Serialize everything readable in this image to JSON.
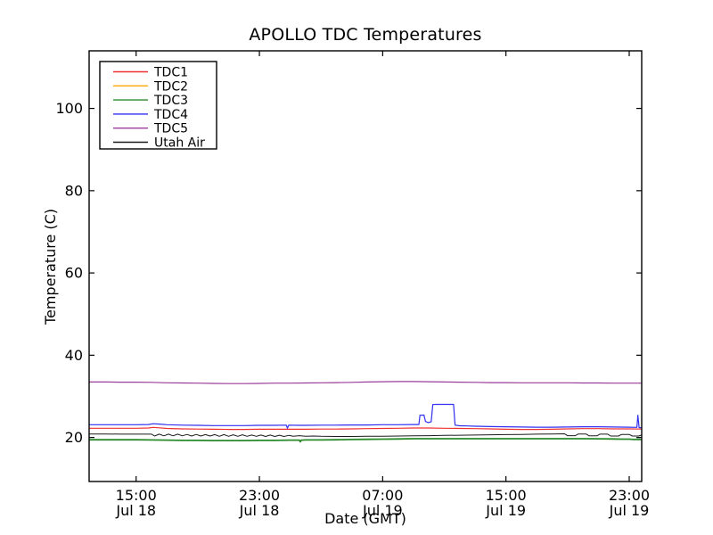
{
  "figure": {
    "background": "#ffffff",
    "axis_color": "#000000",
    "text_color": "#000000"
  },
  "chart_data": {
    "type": "line",
    "title": "APOLLO TDC Temperatures",
    "xlabel": "Date (GMT)",
    "ylabel": "Temperature (C)",
    "grid": false,
    "legend_position": "upper left",
    "x_unit_note": "hours since Jul 18 12:00 GMT",
    "xlim": [
      -0.05,
      35.81
    ],
    "ylim": [
      9.3,
      114
    ],
    "y_ticks": [
      {
        "value": 20,
        "label": "20"
      },
      {
        "value": 40,
        "label": "40"
      },
      {
        "value": 60,
        "label": "60"
      },
      {
        "value": 80,
        "label": "80"
      },
      {
        "value": 100,
        "label": "100"
      }
    ],
    "x_ticks": [
      {
        "t": 3,
        "time": "15:00",
        "date": "Jul 18"
      },
      {
        "t": 11,
        "time": "23:00",
        "date": "Jul 18"
      },
      {
        "t": 19,
        "time": "07:00",
        "date": "Jul 19"
      },
      {
        "t": 27,
        "time": "15:00",
        "date": "Jul 19"
      },
      {
        "t": 35,
        "time": "23:00",
        "date": "Jul 19"
      }
    ],
    "series": [
      {
        "name": "TDC1",
        "color": "#f03030",
        "width": 1.2,
        "points": [
          [
            -0.05,
            22.25
          ],
          [
            1,
            22.25
          ],
          [
            2,
            22.25
          ],
          [
            3,
            22.25
          ],
          [
            3.8,
            22.3
          ],
          [
            4.1,
            22.45
          ],
          [
            4.5,
            22.35
          ],
          [
            5,
            22.2
          ],
          [
            6,
            22.1
          ],
          [
            7,
            22.05
          ],
          [
            8,
            22.0
          ],
          [
            9,
            21.95
          ],
          [
            10,
            21.95
          ],
          [
            11,
            22.0
          ],
          [
            12,
            22.0
          ],
          [
            13,
            22.0
          ],
          [
            14,
            22.0
          ],
          [
            15,
            22.05
          ],
          [
            16,
            22.05
          ],
          [
            17,
            22.1
          ],
          [
            18,
            22.15
          ],
          [
            19,
            22.2
          ],
          [
            20,
            22.25
          ],
          [
            21,
            22.3
          ],
          [
            22,
            22.3
          ],
          [
            23,
            22.25
          ],
          [
            24,
            22.2
          ],
          [
            25,
            22.15
          ],
          [
            26,
            22.1
          ],
          [
            27,
            22.0
          ],
          [
            28,
            21.95
          ],
          [
            29,
            21.95
          ],
          [
            30,
            22.0
          ],
          [
            31,
            22.1
          ],
          [
            32,
            22.15
          ],
          [
            33,
            22.15
          ],
          [
            34,
            22.1
          ],
          [
            35,
            22.1
          ],
          [
            35.81,
            22.05
          ]
        ]
      },
      {
        "name": "TDC2",
        "color": "#ffa500",
        "width": 1.0,
        "points": [
          [
            -0.05,
            19.45
          ],
          [
            1,
            19.45
          ],
          [
            2,
            19.45
          ],
          [
            3,
            19.45
          ],
          [
            4,
            19.4
          ],
          [
            5,
            19.35
          ],
          [
            6,
            19.3
          ],
          [
            7,
            19.3
          ],
          [
            8,
            19.25
          ],
          [
            9,
            19.25
          ],
          [
            10,
            19.25
          ],
          [
            11,
            19.3
          ],
          [
            12,
            19.3
          ],
          [
            13,
            19.35
          ],
          [
            13.6,
            19.35
          ],
          [
            13.65,
            18.95
          ],
          [
            13.72,
            19.35
          ],
          [
            14,
            19.4
          ],
          [
            15,
            19.4
          ],
          [
            16,
            19.45
          ],
          [
            17,
            19.5
          ],
          [
            18,
            19.55
          ],
          [
            19,
            19.6
          ],
          [
            20,
            19.65
          ],
          [
            21,
            19.7
          ],
          [
            22,
            19.7
          ],
          [
            23,
            19.7
          ],
          [
            24,
            19.7
          ],
          [
            25,
            19.7
          ],
          [
            26,
            19.7
          ],
          [
            27,
            19.7
          ],
          [
            28,
            19.7
          ],
          [
            29,
            19.7
          ],
          [
            30,
            19.7
          ],
          [
            31,
            19.7
          ],
          [
            32,
            19.7
          ],
          [
            33,
            19.68
          ],
          [
            34,
            19.65
          ],
          [
            34.5,
            19.6
          ],
          [
            35,
            19.6
          ],
          [
            35.3,
            19.5
          ],
          [
            35.6,
            19.55
          ],
          [
            35.81,
            19.5
          ]
        ]
      },
      {
        "name": "TDC3",
        "color": "#2a8a2a",
        "width": 1.8,
        "points": [
          [
            -0.05,
            19.45
          ],
          [
            1,
            19.45
          ],
          [
            2,
            19.45
          ],
          [
            3,
            19.45
          ],
          [
            4,
            19.4
          ],
          [
            5,
            19.35
          ],
          [
            6,
            19.3
          ],
          [
            7,
            19.3
          ],
          [
            8,
            19.25
          ],
          [
            9,
            19.25
          ],
          [
            10,
            19.25
          ],
          [
            11,
            19.3
          ],
          [
            12,
            19.3
          ],
          [
            13,
            19.35
          ],
          [
            13.6,
            19.35
          ],
          [
            13.65,
            18.95
          ],
          [
            13.72,
            19.35
          ],
          [
            14,
            19.4
          ],
          [
            15,
            19.4
          ],
          [
            16,
            19.45
          ],
          [
            17,
            19.5
          ],
          [
            18,
            19.55
          ],
          [
            19,
            19.6
          ],
          [
            20,
            19.65
          ],
          [
            21,
            19.7
          ],
          [
            22,
            19.7
          ],
          [
            23,
            19.7
          ],
          [
            24,
            19.7
          ],
          [
            25,
            19.7
          ],
          [
            26,
            19.7
          ],
          [
            27,
            19.7
          ],
          [
            28,
            19.7
          ],
          [
            29,
            19.7
          ],
          [
            30,
            19.7
          ],
          [
            31,
            19.7
          ],
          [
            32,
            19.7
          ],
          [
            33,
            19.68
          ],
          [
            34,
            19.65
          ],
          [
            34.5,
            19.6
          ],
          [
            35,
            19.6
          ],
          [
            35.3,
            19.5
          ],
          [
            35.6,
            19.55
          ],
          [
            35.81,
            19.5
          ]
        ]
      },
      {
        "name": "TDC4",
        "color": "#3030f0",
        "width": 1.2,
        "points": [
          [
            -0.05,
            23.1
          ],
          [
            1,
            23.1
          ],
          [
            2,
            23.1
          ],
          [
            3,
            23.1
          ],
          [
            3.8,
            23.15
          ],
          [
            4.1,
            23.35
          ],
          [
            4.5,
            23.25
          ],
          [
            5,
            23.1
          ],
          [
            6,
            23.0
          ],
          [
            7,
            22.95
          ],
          [
            8,
            22.9
          ],
          [
            9,
            22.9
          ],
          [
            10,
            22.9
          ],
          [
            11,
            22.95
          ],
          [
            12,
            22.95
          ],
          [
            12.75,
            23.0
          ],
          [
            12.82,
            22.25
          ],
          [
            12.9,
            23.0
          ],
          [
            13.5,
            22.95
          ],
          [
            14,
            22.95
          ],
          [
            15,
            23.0
          ],
          [
            16,
            23.0
          ],
          [
            17,
            23.05
          ],
          [
            18,
            23.05
          ],
          [
            19,
            23.1
          ],
          [
            20,
            23.1
          ],
          [
            21,
            23.15
          ],
          [
            21.35,
            23.15
          ],
          [
            21.42,
            25.4
          ],
          [
            21.68,
            25.45
          ],
          [
            21.78,
            23.9
          ],
          [
            21.95,
            23.6
          ],
          [
            22.15,
            23.8
          ],
          [
            22.25,
            28.0
          ],
          [
            22.5,
            28.05
          ],
          [
            23.6,
            28.05
          ],
          [
            23.7,
            23.0
          ],
          [
            24,
            22.85
          ],
          [
            24.5,
            22.8
          ],
          [
            25,
            22.75
          ],
          [
            26,
            22.65
          ],
          [
            27,
            22.6
          ],
          [
            28,
            22.55
          ],
          [
            29,
            22.5
          ],
          [
            30,
            22.5
          ],
          [
            31,
            22.55
          ],
          [
            32,
            22.6
          ],
          [
            33,
            22.6
          ],
          [
            34,
            22.55
          ],
          [
            35,
            22.5
          ],
          [
            35.5,
            22.45
          ],
          [
            35.56,
            25.4
          ],
          [
            35.64,
            22.4
          ],
          [
            35.81,
            22.4
          ]
        ]
      },
      {
        "name": "TDC5",
        "color": "#9b3d9b",
        "width": 1.2,
        "points": [
          [
            -0.05,
            33.5
          ],
          [
            1,
            33.5
          ],
          [
            2,
            33.45
          ],
          [
            3,
            33.45
          ],
          [
            4,
            33.4
          ],
          [
            5,
            33.3
          ],
          [
            6,
            33.25
          ],
          [
            7,
            33.2
          ],
          [
            8,
            33.15
          ],
          [
            9,
            33.1
          ],
          [
            10,
            33.1
          ],
          [
            11,
            33.15
          ],
          [
            12,
            33.2
          ],
          [
            13,
            33.2
          ],
          [
            14,
            33.25
          ],
          [
            15,
            33.3
          ],
          [
            16,
            33.35
          ],
          [
            17,
            33.4
          ],
          [
            18,
            33.5
          ],
          [
            19,
            33.55
          ],
          [
            20,
            33.6
          ],
          [
            21,
            33.6
          ],
          [
            22,
            33.55
          ],
          [
            23,
            33.5
          ],
          [
            24,
            33.45
          ],
          [
            25,
            33.4
          ],
          [
            26,
            33.35
          ],
          [
            27,
            33.35
          ],
          [
            28,
            33.3
          ],
          [
            29,
            33.3
          ],
          [
            30,
            33.3
          ],
          [
            31,
            33.3
          ],
          [
            32,
            33.25
          ],
          [
            33,
            33.25
          ],
          [
            34,
            33.2
          ],
          [
            35,
            33.2
          ],
          [
            35.81,
            33.2
          ]
        ]
      },
      {
        "name": "Utah Air",
        "color": "#1a1a1a",
        "width": 1.0,
        "points": [
          [
            -0.05,
            20.85
          ],
          [
            1,
            20.85
          ],
          [
            2,
            20.8
          ],
          [
            3,
            20.8
          ],
          [
            3.9,
            20.8
          ],
          [
            4.0,
            20.8
          ],
          [
            4.2,
            20.35
          ],
          [
            4.5,
            20.8
          ],
          [
            4.8,
            20.4
          ],
          [
            5.1,
            20.8
          ],
          [
            5.4,
            20.4
          ],
          [
            5.7,
            20.8
          ],
          [
            6.0,
            20.4
          ],
          [
            6.3,
            20.75
          ],
          [
            6.6,
            20.35
          ],
          [
            6.9,
            20.75
          ],
          [
            7.2,
            20.35
          ],
          [
            7.5,
            20.7
          ],
          [
            7.8,
            20.35
          ],
          [
            8.1,
            20.7
          ],
          [
            8.4,
            20.3
          ],
          [
            8.7,
            20.7
          ],
          [
            9.0,
            20.3
          ],
          [
            9.3,
            20.65
          ],
          [
            9.6,
            20.3
          ],
          [
            9.9,
            20.65
          ],
          [
            10.2,
            20.3
          ],
          [
            10.5,
            20.6
          ],
          [
            10.8,
            20.3
          ],
          [
            11.1,
            20.6
          ],
          [
            11.4,
            20.25
          ],
          [
            11.7,
            20.6
          ],
          [
            12.0,
            20.25
          ],
          [
            12.3,
            20.55
          ],
          [
            12.6,
            20.25
          ],
          [
            12.9,
            20.5
          ],
          [
            13.2,
            20.3
          ],
          [
            13.6,
            20.45
          ],
          [
            14,
            20.3
          ],
          [
            14.5,
            20.35
          ],
          [
            15,
            20.3
          ],
          [
            16,
            20.25
          ],
          [
            17,
            20.25
          ],
          [
            18,
            20.3
          ],
          [
            19,
            20.3
          ],
          [
            20,
            20.35
          ],
          [
            21,
            20.4
          ],
          [
            22,
            20.45
          ],
          [
            23,
            20.5
          ],
          [
            24,
            20.55
          ],
          [
            25,
            20.6
          ],
          [
            26,
            20.65
          ],
          [
            27,
            20.7
          ],
          [
            28,
            20.75
          ],
          [
            29,
            20.8
          ],
          [
            30,
            20.85
          ],
          [
            30.8,
            20.9
          ],
          [
            31.0,
            20.45
          ],
          [
            31.5,
            20.45
          ],
          [
            31.7,
            20.85
          ],
          [
            32.2,
            20.85
          ],
          [
            32.4,
            20.4
          ],
          [
            32.9,
            20.4
          ],
          [
            33.1,
            20.8
          ],
          [
            33.6,
            20.8
          ],
          [
            33.8,
            20.35
          ],
          [
            34.3,
            20.35
          ],
          [
            34.5,
            20.75
          ],
          [
            35.0,
            20.75
          ],
          [
            35.2,
            20.35
          ],
          [
            35.6,
            20.35
          ],
          [
            35.81,
            20.6
          ]
        ]
      }
    ],
    "legend_order": [
      "TDC1",
      "TDC2",
      "TDC3",
      "TDC4",
      "TDC5",
      "Utah Air"
    ]
  }
}
